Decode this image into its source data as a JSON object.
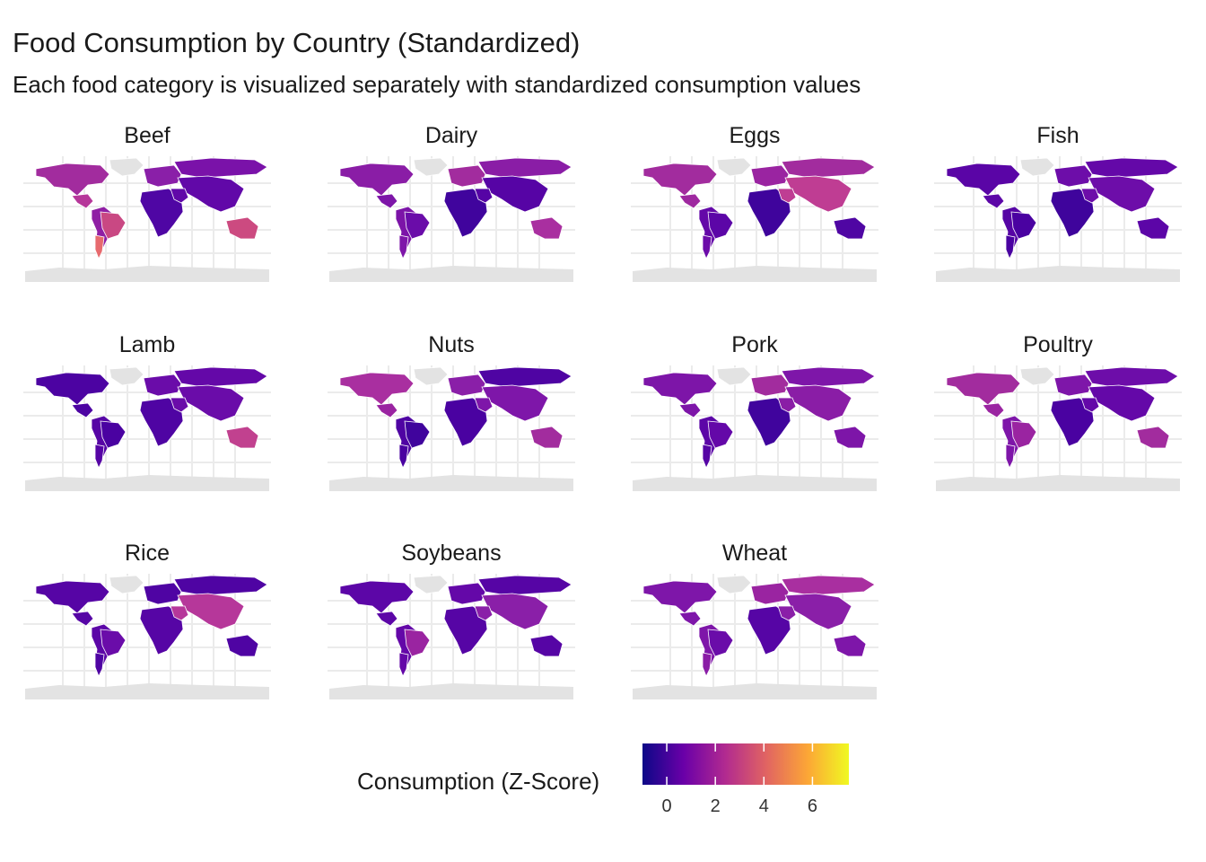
{
  "header": {
    "title": "Food Consumption by Country (Standardized)",
    "subtitle": "Each food category is visualized separately with standardized consumption values"
  },
  "panels": [
    {
      "label": "Beef",
      "fills": {
        "na": "#a22c9e",
        "ca": "#b6379a",
        "ar": "#e76a6e",
        "br": "#c94883",
        "sa": "#8f1fa4",
        "eu": "#8a1fa8",
        "ru": "#7a12a9",
        "as": "#6108a8",
        "af": "#4f06a4",
        "au": "#cc4a80"
      }
    },
    {
      "label": "Dairy",
      "fills": {
        "na": "#8a1da6",
        "ca": "#7d15a8",
        "ar": "#7e16a9",
        "br": "#6a0ca9",
        "sa": "#7c14a8",
        "eu": "#a22c9e",
        "ru": "#8a1da6",
        "as": "#5604a5",
        "af": "#40049d",
        "au": "#a92fa0"
      }
    },
    {
      "label": "Eggs",
      "fills": {
        "na": "#a22c9e",
        "ca": "#9e289f",
        "ar": "#6c0ca9",
        "br": "#5c06a7",
        "sa": "#6408a8",
        "eu": "#9a24a1",
        "ru": "#a22c9e",
        "as": "#bf3d93",
        "af": "#3f049c",
        "au": "#4f06a3"
      }
    },
    {
      "label": "Fish",
      "fills": {
        "na": "#5a05a6",
        "ca": "#5c06a7",
        "ar": "#4a02a1",
        "br": "#4a02a1",
        "sa": "#5605a5",
        "eu": "#6d0da9",
        "ru": "#6408a8",
        "as": "#6d0da9",
        "af": "#3f049c",
        "au": "#5c06a7"
      }
    },
    {
      "label": "Lamb",
      "fills": {
        "na": "#4c03a2",
        "ca": "#4c03a2",
        "ar": "#5605a5",
        "br": "#4a02a1",
        "sa": "#5605a5",
        "eu": "#6a0ca9",
        "ru": "#6408a8",
        "as": "#6a0ca9",
        "af": "#4f04a3",
        "au": "#c1418f"
      }
    },
    {
      "label": "Nuts",
      "fills": {
        "na": "#a92fa0",
        "ca": "#9a24a1",
        "ar": "#4a02a1",
        "br": "#40049d",
        "sa": "#4f04a3",
        "eu": "#8a1fa8",
        "ru": "#4f04a3",
        "as": "#7e16a9",
        "af": "#4a02a1",
        "au": "#a22c9e"
      }
    },
    {
      "label": "Pork",
      "fills": {
        "na": "#7d15a8",
        "ca": "#7d15a8",
        "ar": "#5605a5",
        "br": "#6408a8",
        "sa": "#5c06a7",
        "eu": "#a22c9e",
        "ru": "#7e16a9",
        "as": "#8a1da6",
        "af": "#40049d",
        "au": "#7d15a8"
      }
    },
    {
      "label": "Poultry",
      "fills": {
        "na": "#a22c9e",
        "ca": "#9a24a1",
        "ar": "#7e16a9",
        "br": "#9a24a1",
        "sa": "#7e16a9",
        "eu": "#7e16a9",
        "ru": "#6d0da9",
        "as": "#6408a8",
        "af": "#4a02a1",
        "au": "#a22c9e"
      }
    },
    {
      "label": "Rice",
      "fills": {
        "na": "#5605a5",
        "ca": "#5605a5",
        "ar": "#4f04a3",
        "br": "#6a0ca9",
        "sa": "#5c06a7",
        "eu": "#4f04a3",
        "ru": "#4f04a3",
        "as": "#b6379a",
        "af": "#5605a5",
        "au": "#4f04a3"
      }
    },
    {
      "label": "Soybeans",
      "fills": {
        "na": "#5c06a7",
        "ca": "#5c06a7",
        "ar": "#6408a8",
        "br": "#9a24a1",
        "sa": "#6408a8",
        "eu": "#6408a8",
        "ru": "#5605a5",
        "as": "#8a1fa8",
        "af": "#5605a5",
        "au": "#5605a5"
      }
    },
    {
      "label": "Wheat",
      "fills": {
        "na": "#7e16a9",
        "ca": "#7e16a9",
        "ar": "#8a1da6",
        "br": "#6a0ca9",
        "sa": "#7e16a9",
        "eu": "#9a24a1",
        "ru": "#a92fa0",
        "as": "#8a1fa8",
        "af": "#5605a5",
        "au": "#7e16a9"
      }
    }
  ],
  "legend": {
    "title": "Consumption (Z-Score)",
    "ticks": [
      {
        "value": 0,
        "label": "0"
      },
      {
        "value": 2,
        "label": "2"
      },
      {
        "value": 4,
        "label": "4"
      },
      {
        "value": 6,
        "label": "6"
      }
    ],
    "range": [
      -1.0,
      7.5
    ],
    "colors": [
      "#0d0887",
      "#6a00a8",
      "#b12a90",
      "#e16462",
      "#fca636",
      "#f0f921"
    ]
  },
  "colors": {
    "no_data": "#e3e3e3",
    "grid": "#ebebeb",
    "border": "#ffffff"
  }
}
